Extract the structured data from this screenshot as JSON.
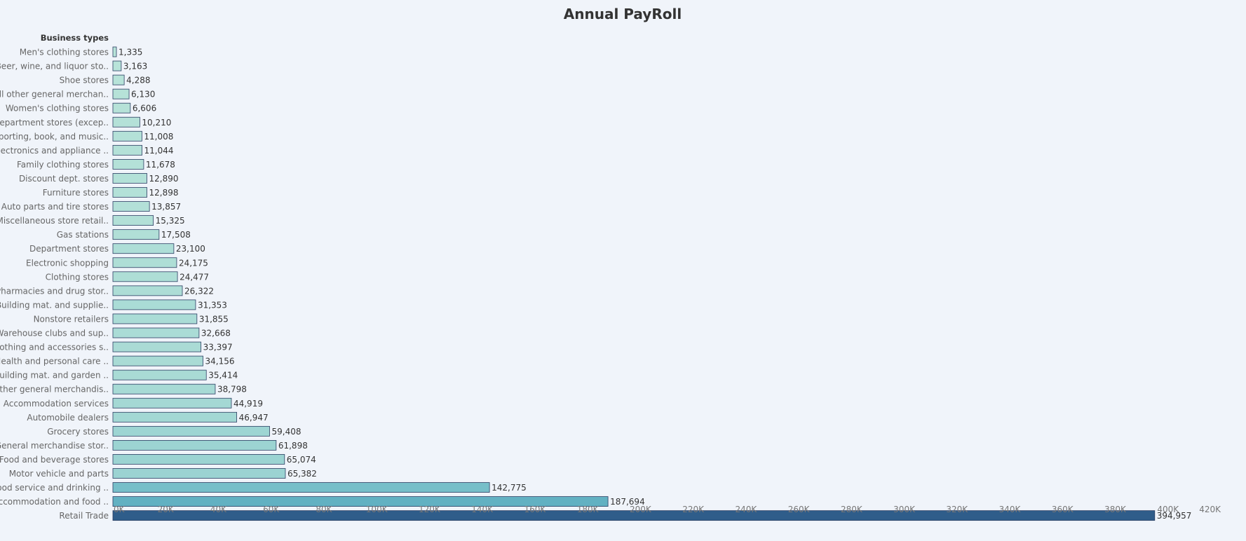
{
  "chart_data": {
    "type": "bar",
    "orientation": "horizontal",
    "title": "Annual PayRoll",
    "category_header": "Business types",
    "categories": [
      "Men's clothing stores",
      "Beer, wine, and liquor sto..",
      "Shoe stores",
      "All other general merchan..",
      "Women's clothing stores",
      "Department stores (excep..",
      "Sporting, book, and  music..",
      "Electronics and appliance ..",
      "Family clothing stores",
      "Discount dept. stores",
      "Furniture stores",
      "Auto parts and tire stores",
      "Miscellaneous store retail..",
      "Gas stations",
      "Department stores",
      "Electronic shopping",
      "Clothing stores",
      "Pharmacies and drug stor..",
      "Building mat. and supplie..",
      "Nonstore retailers",
      "Warehouse clubs and sup..",
      "Clothing and accessories s..",
      "Health and personal care ..",
      "Building mat. and garden ..",
      "Other general merchandis..",
      "Accommodation services",
      "Automobile dealers",
      "Grocery stores",
      "General merchandise stor..",
      "Food and beverage stores",
      "Motor vehicle and parts",
      "Food service and drinking ..",
      "Accommodation and food ..",
      "Retail Trade"
    ],
    "values": [
      1335,
      3163,
      4288,
      6130,
      6606,
      10210,
      11008,
      11044,
      11678,
      12890,
      12898,
      13857,
      15325,
      17508,
      23100,
      24175,
      24477,
      26322,
      31353,
      31855,
      32668,
      33397,
      34156,
      35414,
      38798,
      44919,
      46947,
      59408,
      61898,
      65074,
      65382,
      142775,
      187694,
      394957
    ],
    "value_labels": [
      "1,335",
      "3,163",
      "4,288",
      "6,130",
      "6,606",
      "10,210",
      "11,008",
      "11,044",
      "11,678",
      "12,890",
      "12,898",
      "13,857",
      "15,325",
      "17,508",
      "23,100",
      "24,175",
      "24,477",
      "26,322",
      "31,353",
      "31,855",
      "32,668",
      "33,397",
      "34,156",
      "35,414",
      "38,798",
      "44,919",
      "46,947",
      "59,408",
      "61,898",
      "65,074",
      "65,382",
      "142,775",
      "187,694",
      "394,957"
    ],
    "xlim": [
      0,
      420000
    ],
    "x_ticks": [
      0,
      20000,
      40000,
      60000,
      80000,
      100000,
      120000,
      140000,
      160000,
      180000,
      200000,
      220000,
      240000,
      260000,
      280000,
      300000,
      320000,
      340000,
      360000,
      380000,
      400000,
      420000
    ],
    "x_tick_labels": [
      "0K",
      "20K",
      "40K",
      "60K",
      "80K",
      "100K",
      "120K",
      "140K",
      "160K",
      "180K",
      "200K",
      "220K",
      "240K",
      "260K",
      "280K",
      "300K",
      "320K",
      "340K",
      "360K",
      "380K",
      "400K",
      "420K"
    ],
    "grid": false,
    "colors": {
      "background": "#f0f4fa",
      "bar_stroke": "#2c3e63",
      "color_scale": [
        "#b9e4d9",
        "#7cc2cb",
        "#3f9bb5",
        "#2f5d8a"
      ]
    }
  }
}
